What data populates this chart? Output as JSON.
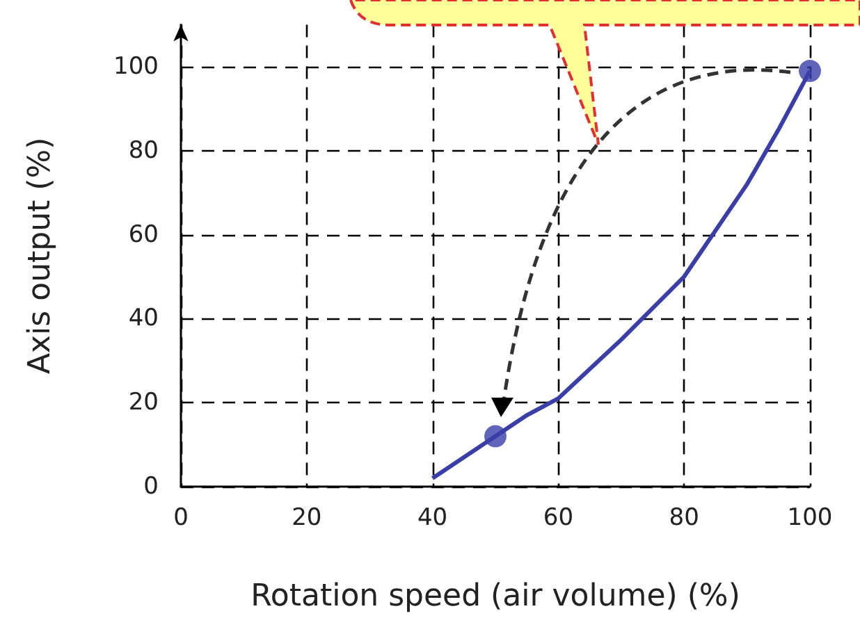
{
  "chart_data": {
    "type": "line",
    "xlabel": "Rotation speed (air volume) (%)",
    "ylabel": "Axis output (%)",
    "x": [
      40,
      45,
      50,
      55,
      60,
      70,
      80,
      90,
      95,
      100
    ],
    "series": [
      {
        "color": "#3a3fa8",
        "values": [
          2,
          7,
          12,
          17,
          21,
          35,
          50,
          72,
          85,
          99
        ],
        "marker": "none"
      },
      {
        "type": "scatter",
        "color": "#3a3fa8",
        "x": [
          50,
          100
        ],
        "values": [
          12,
          99
        ],
        "marker": "circle"
      }
    ],
    "xlim": [
      0,
      100
    ],
    "xticks": [
      0,
      20,
      40,
      60,
      80,
      100
    ],
    "ylim": [
      0,
      110
    ],
    "yticks": [
      0,
      20,
      40,
      60,
      80,
      100
    ],
    "grid": true
  }
}
